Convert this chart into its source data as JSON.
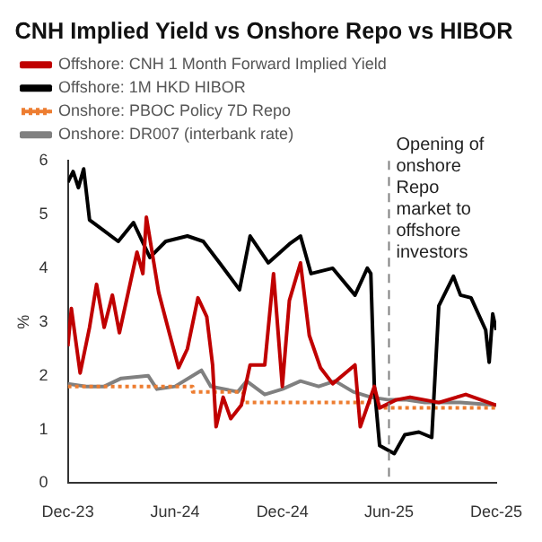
{
  "chart_data": {
    "type": "line",
    "title": "CNH Implied Yield vs Onshore Repo vs HIBOR",
    "ylabel": "%",
    "xlim": [
      "2023-12-01",
      "2025-12-01"
    ],
    "xticks": [
      {
        "value": "2023-12-01",
        "label": "Dec-23"
      },
      {
        "value": "2024-06-01",
        "label": "Jun-24"
      },
      {
        "value": "2024-12-01",
        "label": "Dec-24"
      },
      {
        "value": "2025-06-01",
        "label": "Jun-25"
      },
      {
        "value": "2025-12-01",
        "label": "Dec-25"
      }
    ],
    "ylim": [
      0,
      6
    ],
    "yticks": [
      0,
      1,
      2,
      3,
      4,
      5,
      6
    ],
    "grid": false,
    "legend": "top left",
    "marker": "none",
    "ref_lines": [
      {
        "axis": "x",
        "value": "2025-06-01",
        "label": "Opening of onshore Repo market to offshore investors",
        "color": "#808080",
        "line_style": "dashed"
      }
    ],
    "series": [
      {
        "name": "Offshore: CNH 1 Month Forward Implied Yield",
        "color": "#c00000",
        "line_style": "solid",
        "x": [
          "2023-12-01",
          "2023-12-07",
          "2023-12-22",
          "2024-01-07",
          "2024-01-19",
          "2024-02-01",
          "2024-02-15",
          "2024-02-27",
          "2024-03-28",
          "2024-04-07",
          "2024-04-13",
          "2024-05-04",
          "2024-05-22",
          "2024-06-07",
          "2024-06-22",
          "2024-07-10",
          "2024-07-25",
          "2024-08-04",
          "2024-08-10",
          "2024-08-22",
          "2024-09-04",
          "2024-09-22",
          "2024-10-07",
          "2024-11-01",
          "2024-11-16",
          "2024-12-01",
          "2024-12-13",
          "2025-01-01",
          "2025-01-16",
          "2025-02-04",
          "2025-02-25",
          "2025-04-04",
          "2025-04-13",
          "2025-05-07",
          "2025-05-16",
          "2025-06-13",
          "2025-07-07",
          "2025-08-25",
          "2025-10-10",
          "2025-12-01"
        ],
        "values": [
          2.55,
          3.25,
          2.05,
          2.9,
          3.7,
          2.9,
          3.5,
          2.8,
          4.3,
          3.9,
          4.95,
          3.55,
          2.8,
          2.15,
          2.5,
          3.45,
          3.1,
          2.2,
          1.05,
          1.6,
          1.2,
          1.45,
          2.2,
          2.2,
          3.9,
          1.8,
          3.4,
          4.1,
          2.75,
          2.15,
          1.85,
          2.2,
          1.05,
          1.8,
          1.4,
          1.55,
          1.6,
          1.5,
          1.65,
          1.45
        ]
      },
      {
        "name": "Offshore: 1M HKD HIBOR",
        "color": "#000000",
        "line_style": "solid",
        "x": [
          "2023-12-01",
          "2023-12-10",
          "2023-12-19",
          "2023-12-28",
          "2024-01-07",
          "2024-02-25",
          "2024-03-22",
          "2024-04-19",
          "2024-05-16",
          "2024-06-22",
          "2024-07-19",
          "2024-08-16",
          "2024-09-19",
          "2024-10-07",
          "2024-11-07",
          "2024-12-13",
          "2025-01-01",
          "2025-01-19",
          "2025-02-25",
          "2025-04-04",
          "2025-04-25",
          "2025-05-01",
          "2025-05-07",
          "2025-05-16",
          "2025-06-10",
          "2025-06-28",
          "2025-07-22",
          "2025-08-13",
          "2025-08-25",
          "2025-09-19",
          "2025-10-01",
          "2025-10-19",
          "2025-11-13",
          "2025-11-19",
          "2025-11-25",
          "2025-12-01"
        ],
        "values": [
          5.6,
          5.8,
          5.5,
          5.85,
          4.9,
          4.5,
          4.85,
          4.2,
          4.5,
          4.6,
          4.5,
          4.1,
          3.6,
          4.6,
          4.1,
          4.45,
          4.6,
          3.9,
          4.0,
          3.5,
          4.0,
          3.9,
          1.8,
          0.7,
          0.55,
          0.9,
          0.95,
          0.85,
          3.3,
          3.85,
          3.5,
          3.45,
          2.85,
          2.25,
          3.15,
          2.85
        ]
      },
      {
        "name": "Onshore: PBOC Policy 7D Repo",
        "type": "step",
        "color": "#ed7d31",
        "line_style": "dotted",
        "x": [
          "2023-12-01",
          "2024-07-01",
          "2024-09-25",
          "2025-05-10",
          "2025-12-01"
        ],
        "values": [
          1.8,
          1.7,
          1.5,
          1.4,
          1.4
        ]
      },
      {
        "name": "Onshore: DR007 (interbank rate)",
        "color": "#808080",
        "line_style": "solid",
        "x": [
          "2023-12-01",
          "2024-01-01",
          "2024-02-01",
          "2024-03-01",
          "2024-04-16",
          "2024-05-01",
          "2024-06-01",
          "2024-07-16",
          "2024-08-01",
          "2024-09-16",
          "2024-10-01",
          "2024-11-01",
          "2024-12-01",
          "2025-01-01",
          "2025-02-01",
          "2025-03-01",
          "2025-04-01",
          "2025-05-01",
          "2025-06-01",
          "2025-07-01",
          "2025-08-01",
          "2025-10-01",
          "2025-12-01"
        ],
        "values": [
          1.85,
          1.8,
          1.8,
          1.95,
          2.0,
          1.75,
          1.8,
          2.1,
          1.8,
          1.7,
          1.9,
          1.65,
          1.75,
          1.9,
          1.8,
          1.9,
          1.7,
          1.6,
          1.55,
          1.55,
          1.5,
          1.5,
          1.45
        ]
      }
    ]
  }
}
